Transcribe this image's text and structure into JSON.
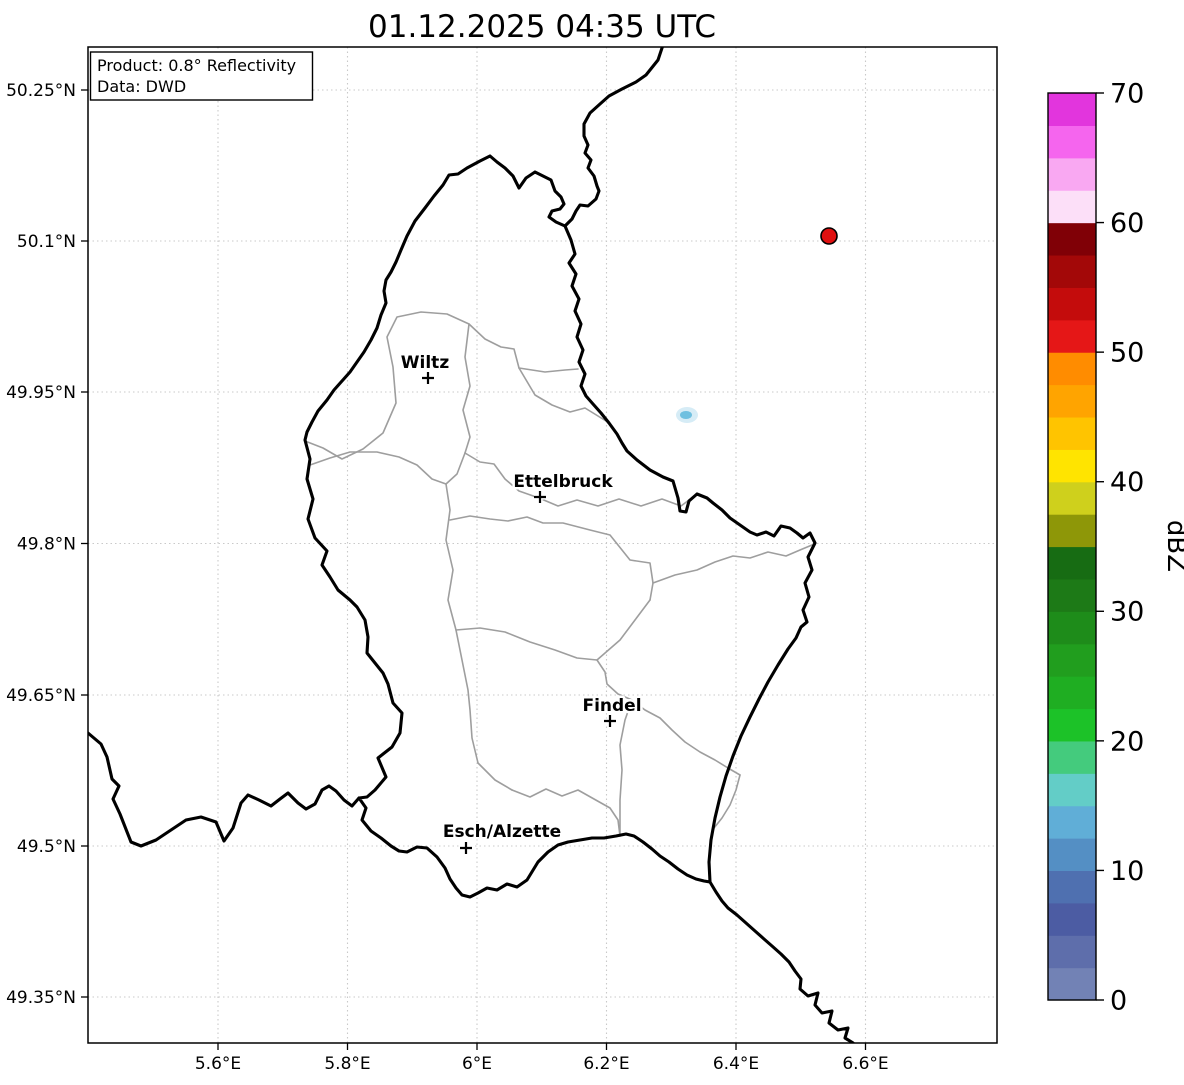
{
  "title": "01.12.2025 04:35 UTC",
  "info_box": {
    "line1": "Product: 0.8° Reflectivity",
    "line2": "Data: DWD"
  },
  "axes": {
    "x_tick_labels": [
      "5.6°E",
      "5.8°E",
      "6°E",
      "6.2°E",
      "6.4°E",
      "6.6°E"
    ],
    "y_tick_labels": [
      "50.25°N",
      "50.1°N",
      "49.95°N",
      "49.8°N",
      "49.65°N",
      "49.5°N",
      "49.35°N"
    ]
  },
  "chart_data": {
    "type": "map",
    "product": "0.8° Reflectivity",
    "data_source": "DWD",
    "timestamp_utc": "01.12.2025 04:35 UTC",
    "extent": {
      "lon": [
        5.4,
        6.8
      ],
      "lat": [
        49.3,
        50.29
      ]
    },
    "region": "Luxembourg",
    "cities": [
      {
        "name": "Wiltz",
        "lon": 5.93,
        "lat": 49.97
      },
      {
        "name": "Ettelbruck",
        "lon": 6.1,
        "lat": 49.85
      },
      {
        "name": "Findel",
        "lon": 6.21,
        "lat": 49.63
      },
      {
        "name": "Esch/Alzette",
        "lon": 5.98,
        "lat": 49.5
      }
    ],
    "radar_site": {
      "lon": 6.54,
      "lat": 50.1
    },
    "echoes": [
      {
        "lon": 6.32,
        "lat": 49.93,
        "approx_dbz": 10
      }
    ],
    "colorbar": {
      "unit": "dBZ",
      "min": 0,
      "max": 70,
      "step_dbz": 2.5,
      "ticks": [
        0,
        10,
        20,
        30,
        40,
        50,
        60,
        70
      ],
      "colors_bottom_to_top": [
        "#7282b5",
        "#5e6eab",
        "#4c5ca3",
        "#4f70b0",
        "#548fc4",
        "#60aed7",
        "#63cdc7",
        "#44cb7d",
        "#1cc228",
        "#1fae22",
        "#219e1e",
        "#1e8c1a",
        "#1d7a17",
        "#176c13",
        "#8e9708",
        "#cfd01c",
        "#ffe400",
        "#ffc400",
        "#ffa400",
        "#ff8c00",
        "#e51717",
        "#c40c0c",
        "#a30808",
        "#800006",
        "#fcdff8",
        "#f9a8f2",
        "#f565ee",
        "#e235dd"
      ]
    },
    "style": {
      "border_color": "#000000",
      "canton_color": "#9e9e9e",
      "grid_color": "#c9c9c9",
      "radar_site_color": "#e01010",
      "echo_color": "#6fc0e0",
      "echo_halo_color": "#cfe9f5"
    }
  }
}
